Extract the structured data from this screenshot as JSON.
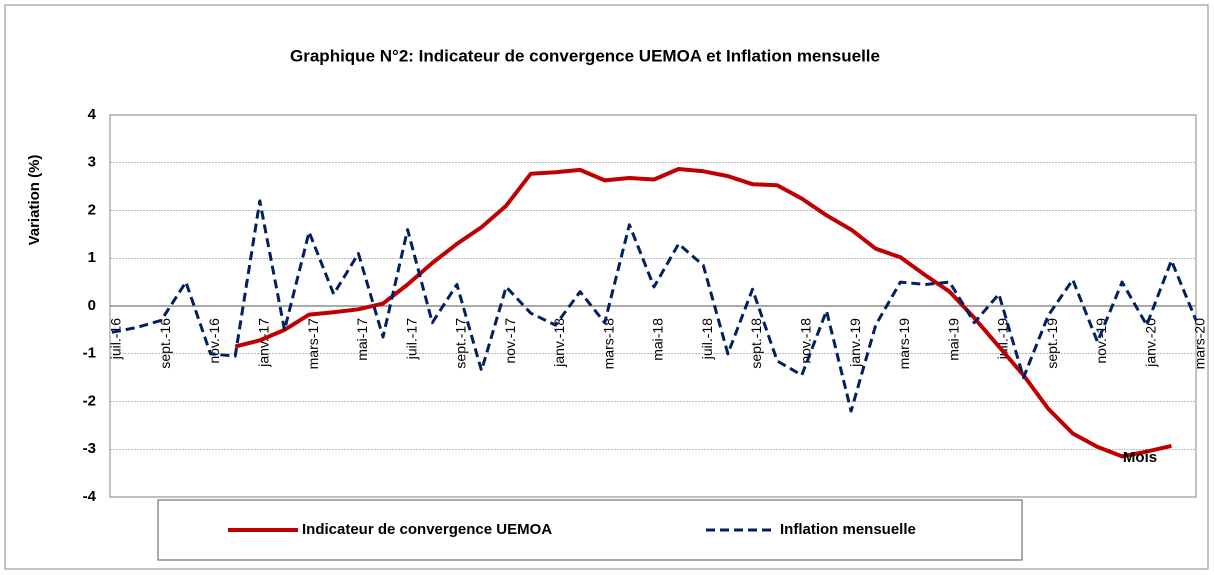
{
  "chart_data": {
    "type": "line",
    "title": "Graphique N°2: Indicateur de convergence UEMOA et Inflation mensuelle",
    "y_label": "Variation (%)",
    "x_label": "Mois",
    "categories": [
      "juil.-16",
      null,
      "sept.-16",
      null,
      "nov.-16",
      null,
      "janv.-17",
      null,
      "mars-17",
      null,
      "mai-17",
      null,
      "juil.-17",
      null,
      "sept.-17",
      null,
      "nov.-17",
      null,
      "janv.-18",
      null,
      "mars-18",
      null,
      "mai-18",
      null,
      "juil.-18",
      null,
      "sept.-18",
      null,
      "nov.-18",
      null,
      "janv.-19",
      null,
      "mars-19",
      null,
      "mai-19",
      null,
      "juil.-19",
      null,
      "sept.-19",
      null,
      "nov.-19",
      null,
      "janv.-20",
      null,
      "mars-20"
    ],
    "series": [
      {
        "name": "Indicateur de convergence UEMOA",
        "color": "#c00000",
        "dash": false,
        "values": [
          null,
          null,
          null,
          null,
          null,
          -0.85,
          -0.72,
          -0.5,
          -0.18,
          -0.13,
          -0.07,
          0.05,
          0.45,
          0.9,
          1.3,
          1.65,
          2.1,
          2.77,
          2.8,
          2.85,
          2.63,
          2.68,
          2.65,
          2.87,
          2.82,
          2.72,
          2.55,
          2.53,
          2.25,
          1.9,
          1.6,
          1.2,
          1.02,
          0.65,
          0.3,
          -0.25,
          -0.85,
          -1.45,
          -2.15,
          -2.67,
          -2.95,
          -3.15,
          -3.05,
          -2.93,
          null
        ]
      },
      {
        "name": "Inflation mensuelle",
        "color": "#002060",
        "dash": true,
        "values": [
          -0.55,
          -0.45,
          -0.3,
          0.5,
          -1.0,
          -1.05,
          2.2,
          -0.5,
          1.55,
          0.25,
          1.1,
          -0.65,
          1.6,
          -0.35,
          0.45,
          -1.35,
          0.4,
          -0.15,
          -0.4,
          0.3,
          -0.35,
          1.7,
          0.4,
          1.3,
          0.85,
          -1.0,
          0.35,
          -1.15,
          -1.45,
          -0.1,
          -2.2,
          -0.4,
          0.5,
          0.45,
          0.5,
          -0.35,
          0.25,
          -1.5,
          -0.2,
          0.55,
          -0.75,
          0.5,
          -0.4,
          0.95,
          -0.3
        ]
      }
    ],
    "ylim": [
      -4,
      4
    ],
    "yticks": [
      -4,
      -3,
      -2,
      -1,
      0,
      1,
      2,
      3,
      4
    ],
    "grid": true,
    "legend": "bottom"
  }
}
